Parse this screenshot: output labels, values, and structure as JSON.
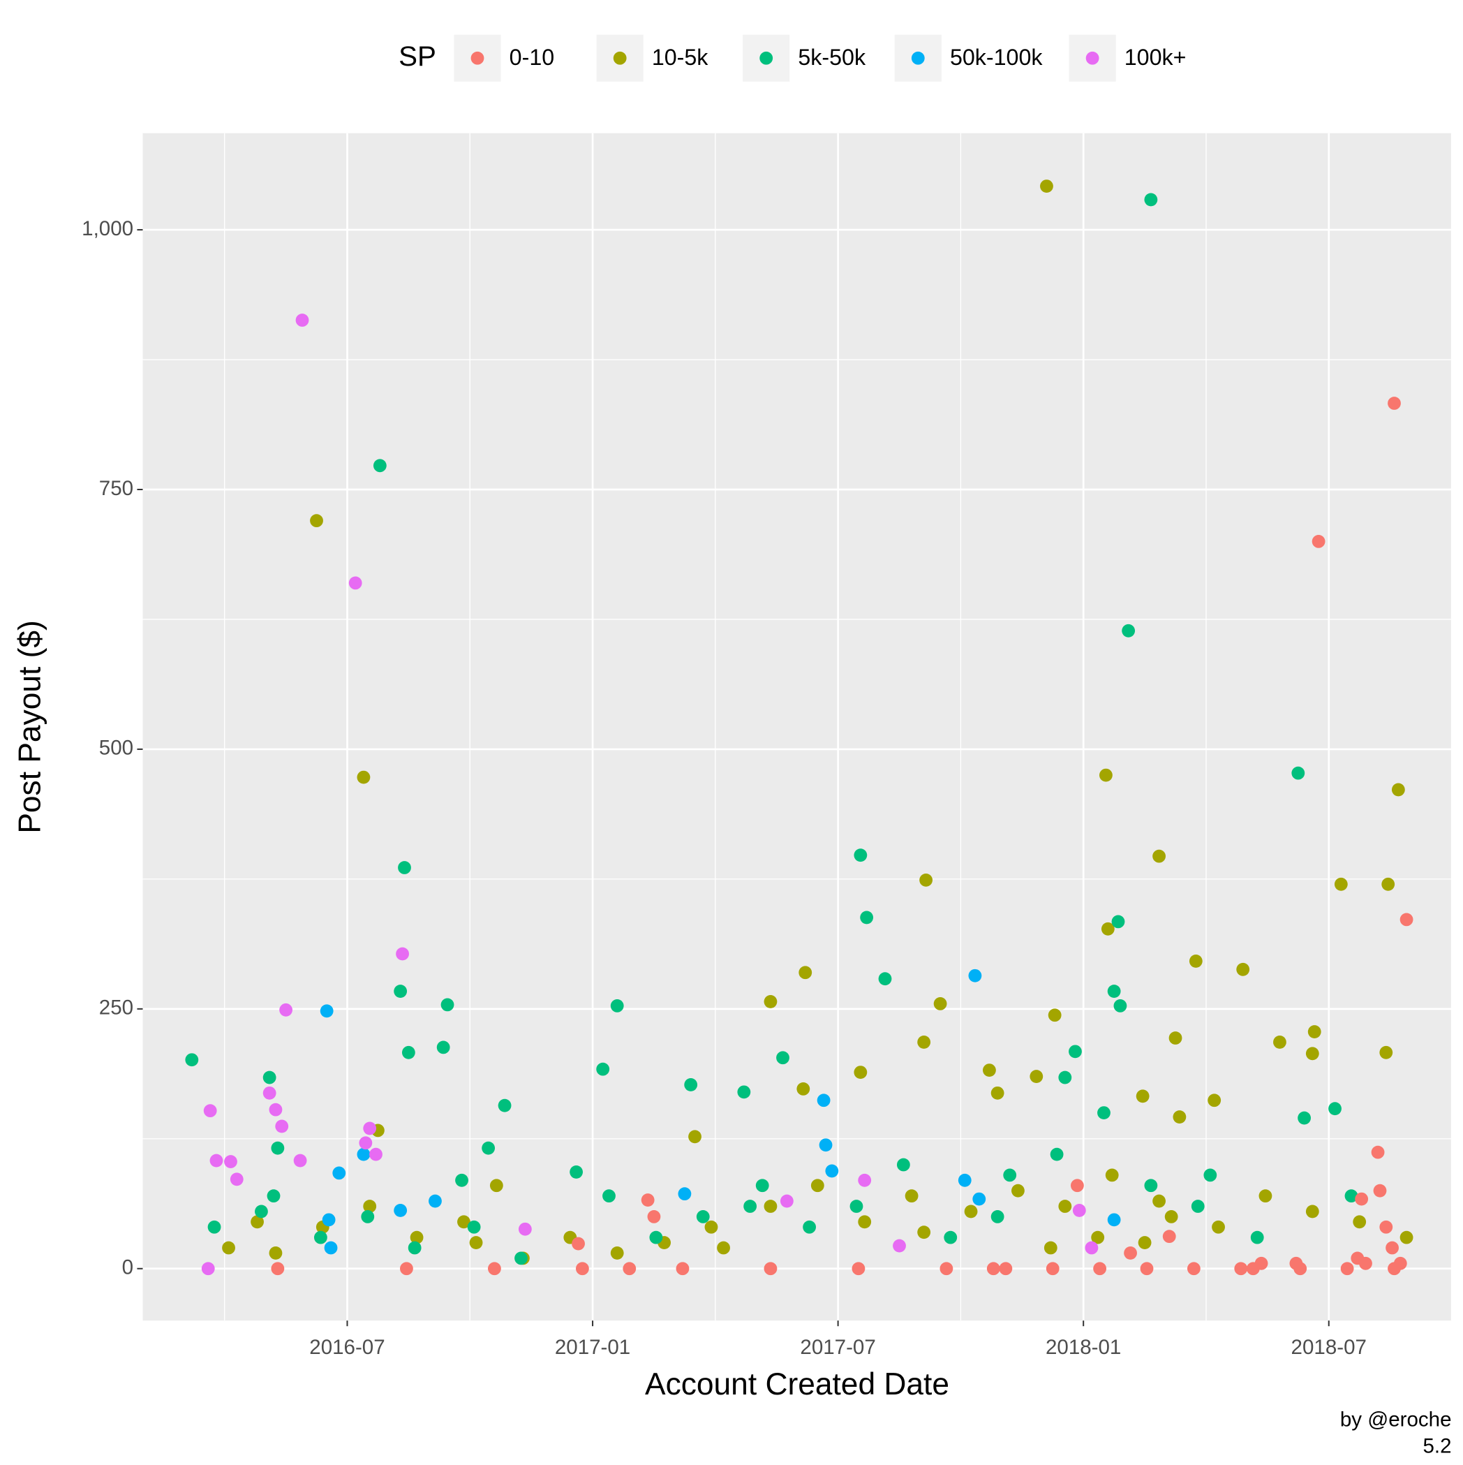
{
  "chart_data": {
    "type": "scatter",
    "xlabel": "Account Created Date",
    "ylabel": "Post Payout ($)",
    "legend_title": "SP",
    "legend": "top",
    "grid": true,
    "annotations": [
      "by @eroche",
      "5.2"
    ],
    "xlim": [
      "2016-02",
      "2018-10"
    ],
    "xticks": [
      "2016-07",
      "2017-01",
      "2017-07",
      "2018-01",
      "2018-07"
    ],
    "ylim": [
      -50,
      1093
    ],
    "yticks": [
      0,
      250,
      500,
      750,
      {
        "value": 1000,
        "label": "1,000"
      }
    ],
    "series": [
      {
        "name": "10-5k",
        "color": "#A3A500",
        "x": [
          "2017-12",
          "2016-06",
          "2016-07",
          "2018-01",
          "2018-08",
          "2018-02",
          "2017-09",
          "2018-07",
          "2018-08",
          "2018-01",
          "2018-03",
          "2018-04",
          "2017-06",
          "2017-05",
          "2017-09",
          "2018-06",
          "2018-05",
          "2017-09",
          "2018-03",
          "2018-08",
          "2017-07",
          "2017-10",
          "2017-11",
          "2017-06",
          "2017-12",
          "2018-02",
          "2018-06",
          "2016-07",
          "2017-10",
          "2018-04",
          "2018-03",
          "2017-03",
          "2016-10",
          "2016-04",
          "2016-04",
          "2016-05",
          "2016-06",
          "2016-07",
          "2016-08",
          "2016-09",
          "2016-10",
          "2016-11",
          "2016-12",
          "2017-01",
          "2017-02",
          "2017-03",
          "2017-04",
          "2017-05",
          "2017-06",
          "2017-07",
          "2017-08",
          "2017-09",
          "2017-10",
          "2017-11",
          "2017-12",
          "2018-01",
          "2018-02",
          "2018-03",
          "2018-04",
          "2018-05",
          "2018-06",
          "2018-07",
          "2018-08",
          "2017-12",
          "2018-01",
          "2018-02"
        ],
        "values": [
          1042,
          720,
          473,
          475,
          461,
          397,
          374,
          370,
          370,
          327,
          296,
          288,
          285,
          257,
          255,
          228,
          218,
          218,
          222,
          208,
          189,
          191,
          185,
          173,
          244,
          166,
          207,
          133,
          169,
          162,
          146,
          127,
          80,
          45,
          20,
          15,
          40,
          60,
          30,
          45,
          25,
          10,
          30,
          15,
          25,
          40,
          20,
          60,
          80,
          45,
          70,
          35,
          55,
          75,
          60,
          90,
          65,
          50,
          40,
          70,
          55,
          45,
          30,
          20,
          30,
          25
        ]
      },
      {
        "name": "5k-50k",
        "color": "#00BF7D",
        "x": [
          "2018-02",
          "2016-07",
          "2018-02",
          "2018-06",
          "2016-08",
          "2017-07",
          "2017-07",
          "2018-01",
          "2017-08",
          "2016-08",
          "2016-09",
          "2017-01",
          "2018-01",
          "2018-01",
          "2016-03",
          "2016-09",
          "2016-08",
          "2017-05",
          "2017-12",
          "2016-05",
          "2017-01",
          "2017-03",
          "2017-12",
          "2017-04",
          "2016-10",
          "2018-07",
          "2016-05",
          "2016-10",
          "2016-12",
          "2016-03",
          "2016-04",
          "2016-05",
          "2016-06",
          "2016-07",
          "2016-08",
          "2016-09",
          "2016-10",
          "2016-11",
          "2017-01",
          "2017-02",
          "2017-03",
          "2017-04",
          "2017-05",
          "2017-06",
          "2017-07",
          "2017-08",
          "2017-09",
          "2017-10",
          "2017-11",
          "2017-12",
          "2018-01",
          "2018-02",
          "2018-03",
          "2018-04",
          "2018-05",
          "2018-06",
          "2018-07"
        ],
        "values": [
          1029,
          773,
          614,
          477,
          386,
          398,
          338,
          334,
          279,
          267,
          254,
          253,
          267,
          253,
          201,
          213,
          208,
          203,
          209,
          184,
          192,
          177,
          184,
          170,
          157,
          154,
          116,
          116,
          93,
          40,
          55,
          70,
          30,
          50,
          20,
          85,
          40,
          10,
          70,
          30,
          50,
          60,
          80,
          40,
          60,
          100,
          30,
          50,
          90,
          110,
          150,
          80,
          60,
          90,
          30,
          145,
          70
        ]
      },
      {
        "name": "50k-100k",
        "color": "#00B0F6",
        "x": [
          "2017-10",
          "2016-06",
          "2017-06",
          "2016-06",
          "2017-10",
          "2017-03",
          "2016-07",
          "2016-06",
          "2017-06",
          "2017-06",
          "2016-09",
          "2016-08",
          "2017-10",
          "2016-06",
          "2018-01"
        ],
        "values": [
          282,
          248,
          162,
          92,
          85,
          72,
          110,
          47,
          119,
          94,
          65,
          56,
          67,
          20,
          47
        ]
      },
      {
        "name": "100k+",
        "color": "#E76BF3",
        "x": [
          "2016-05",
          "2016-07",
          "2016-08",
          "2016-05",
          "2016-03",
          "2016-03",
          "2016-05",
          "2016-05",
          "2016-05",
          "2016-07",
          "2016-07",
          "2016-05",
          "2016-04",
          "2016-04",
          "2016-07",
          "2016-03",
          "2017-05",
          "2017-12",
          "2018-01",
          "2016-11",
          "2017-08",
          "2017-07"
        ],
        "values": [
          913,
          660,
          303,
          249,
          152,
          104,
          169,
          153,
          137,
          135,
          110,
          104,
          103,
          86,
          121,
          0,
          65,
          56,
          20,
          38,
          22,
          85
        ]
      },
      {
        "name": "0-10",
        "color": "#F8766D",
        "x": [
          "2018-08",
          "2018-06",
          "2018-08",
          "2018-08",
          "2017-02",
          "2017-02",
          "2016-12",
          "2018-07",
          "2018-03",
          "2018-08",
          "2018-08",
          "2018-08",
          "2018-07",
          "2017-12",
          "2018-02",
          "2016-05",
          "2016-08",
          "2016-10",
          "2016-12",
          "2017-01",
          "2017-03",
          "2017-05",
          "2017-07",
          "2017-09",
          "2017-10",
          "2017-11",
          "2017-12",
          "2018-01",
          "2018-02",
          "2018-03",
          "2018-04",
          "2018-05",
          "2018-06",
          "2018-07",
          "2018-08",
          "2018-08",
          "2018-07",
          "2018-06",
          "2018-05"
        ],
        "values": [
          833,
          700,
          336,
          112,
          66,
          50,
          24,
          67,
          31,
          75,
          40,
          20,
          10,
          80,
          15,
          0,
          0,
          0,
          0,
          0,
          0,
          0,
          0,
          0,
          0,
          0,
          0,
          0,
          0,
          0,
          0,
          0,
          0,
          0,
          0,
          5,
          5,
          5,
          5
        ]
      }
    ]
  }
}
